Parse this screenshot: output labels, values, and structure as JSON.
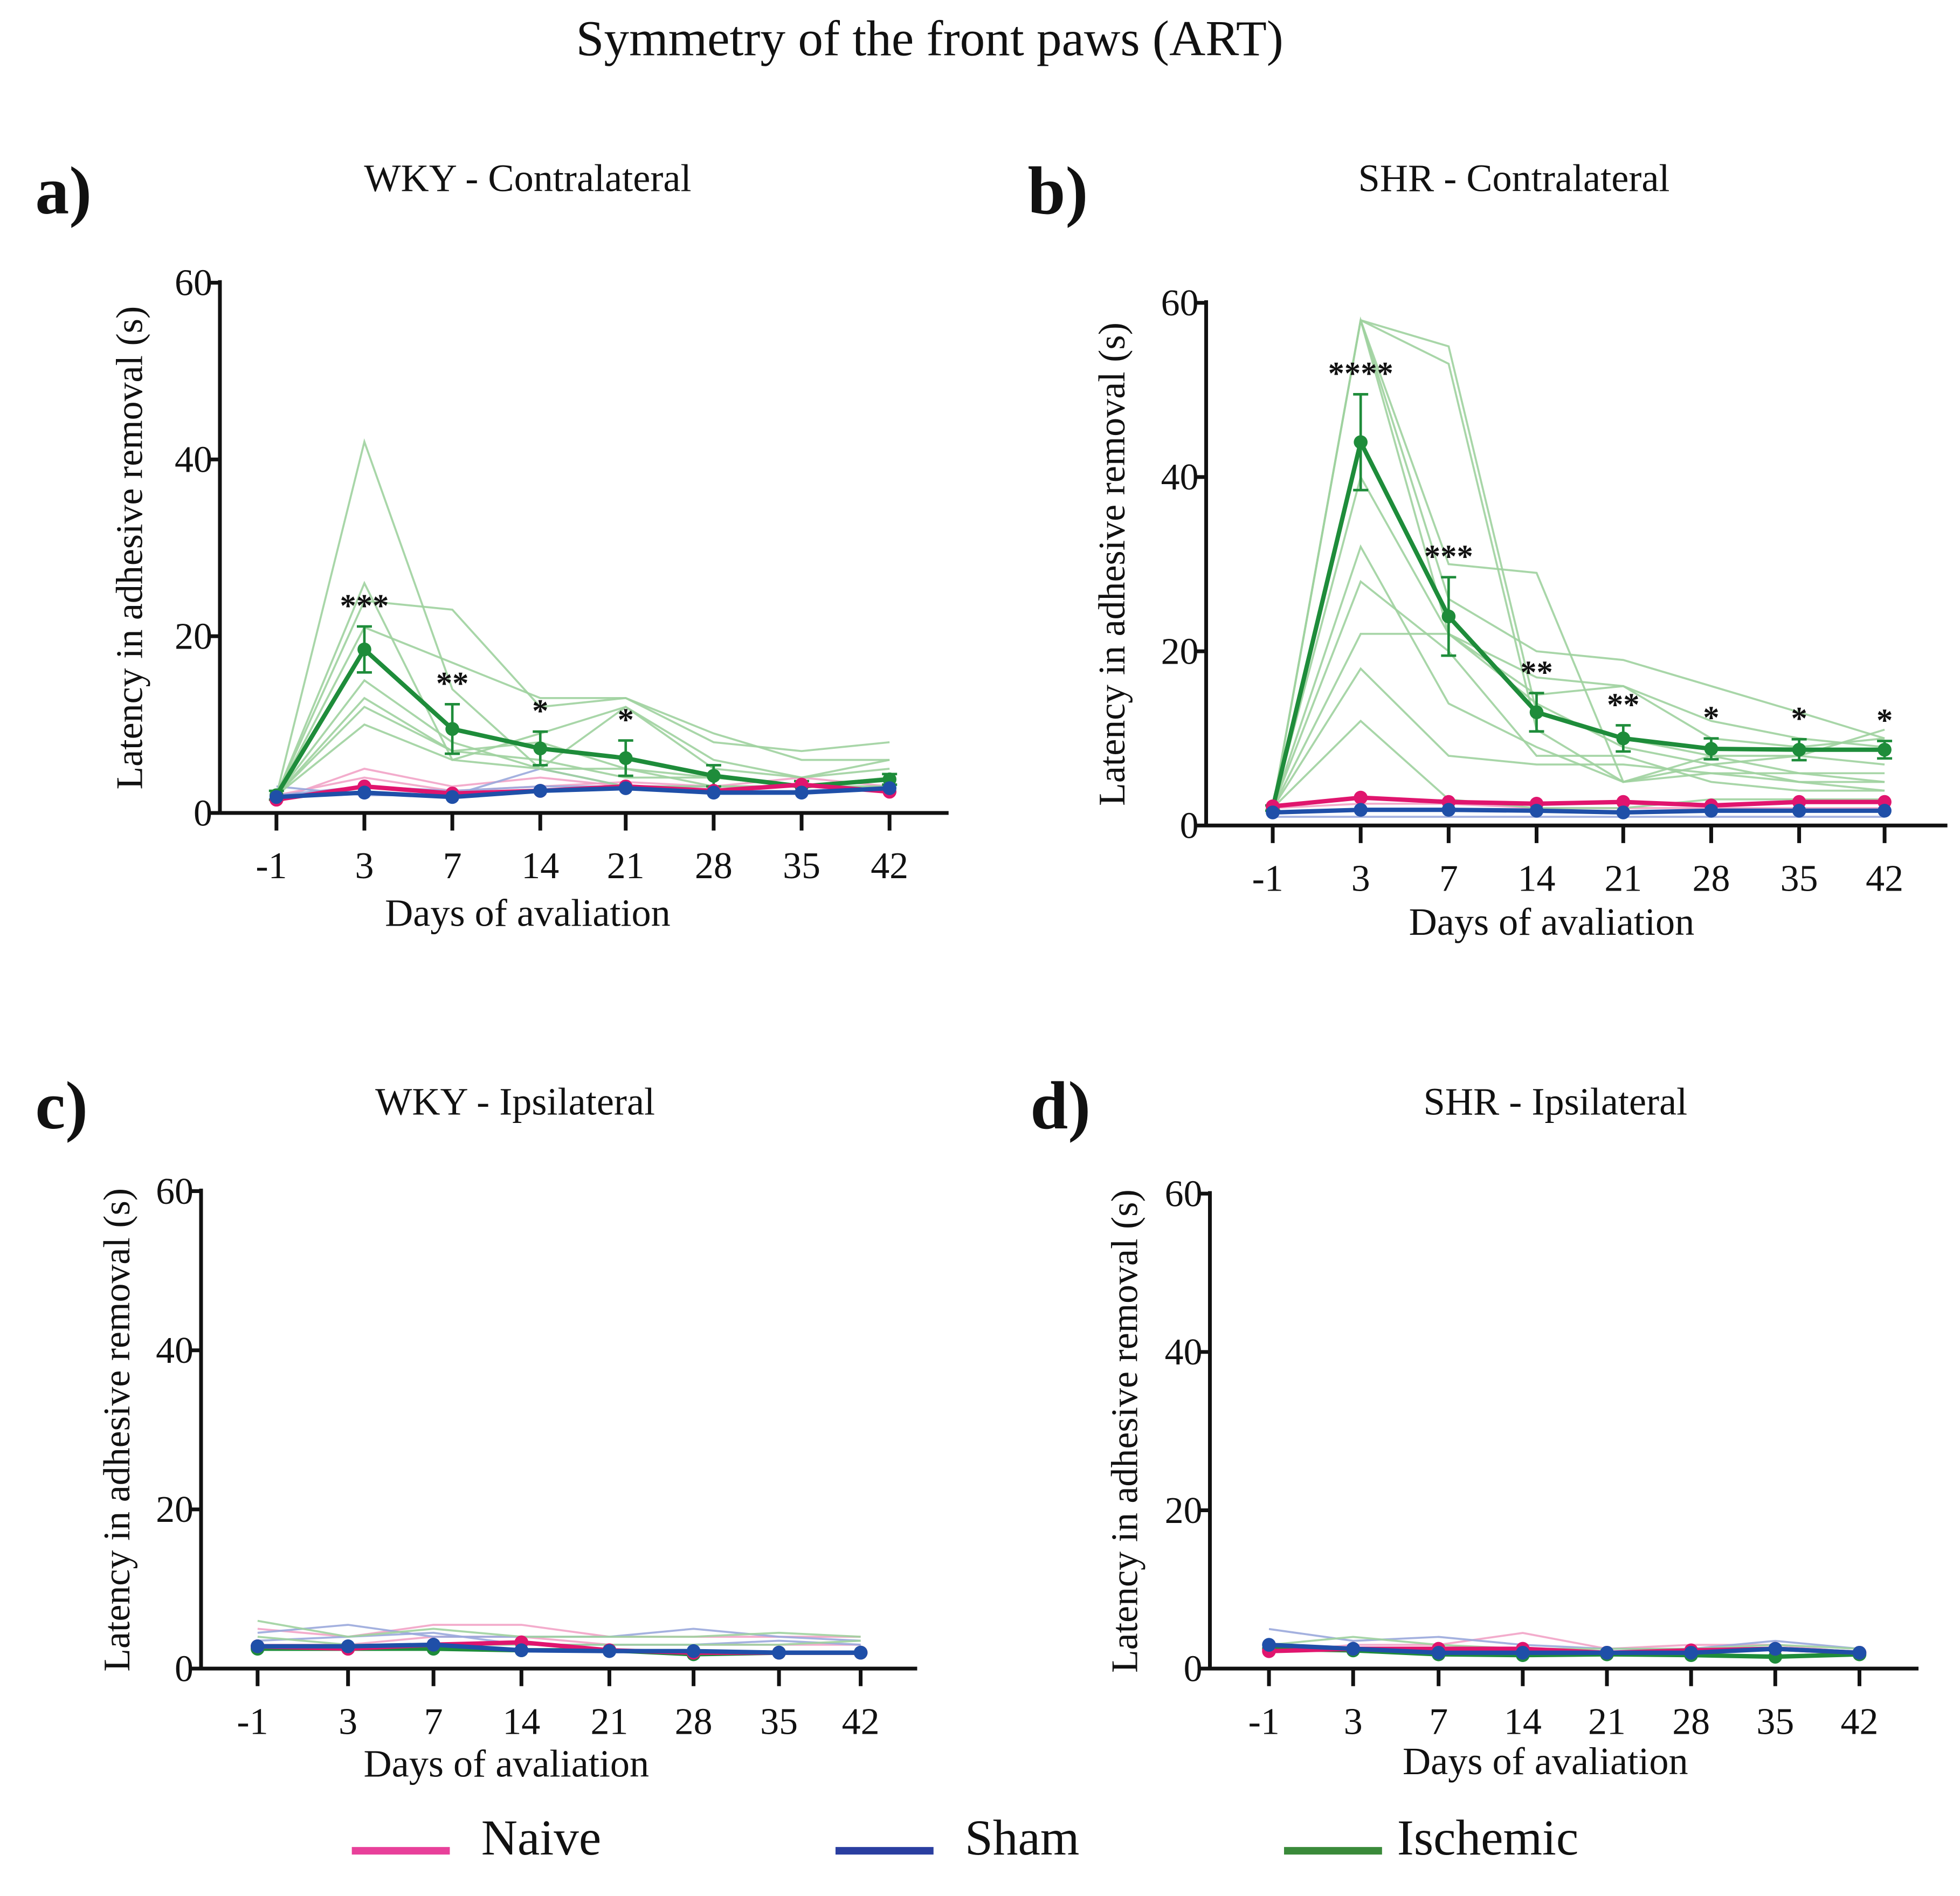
{
  "title": "Symmetry of the front paws (ART)",
  "colors": {
    "naive": "#e0156e",
    "naive_individual": "#f2a3c6",
    "sham": "#1f4fa8",
    "sham_individual": "#9aa8dc",
    "ischemic": "#1e8c3a",
    "ischemic_individual": "#9fd19f",
    "legend_naive": "#e8409a",
    "legend_sham": "#2a3ea0",
    "legend_ischemic": "#3a8a3a"
  },
  "legend": [
    {
      "key": "naive",
      "label": "Naive"
    },
    {
      "key": "sham",
      "label": "Sham"
    },
    {
      "key": "ischemic",
      "label": "Ischemic"
    }
  ],
  "chart_data": [
    {
      "type": "line",
      "panel_label": "a)",
      "title": "WKY - Contralateral",
      "xlabel": "Days of avaliation",
      "ylabel": "Latency in adhesive removal (s)",
      "categories": [
        "-1",
        "3",
        "7",
        "14",
        "21",
        "28",
        "35",
        "42"
      ],
      "yticks": [
        0,
        20,
        40,
        60
      ],
      "ylim": [
        0,
        60
      ],
      "grid": false,
      "series": [
        {
          "name": "Naive",
          "key": "naive",
          "values": [
            1.5,
            3,
            2.2,
            2.5,
            3,
            2.5,
            3.2,
            2.4
          ]
        },
        {
          "name": "Sham",
          "key": "sham",
          "values": [
            1.8,
            2.3,
            1.8,
            2.5,
            2.8,
            2.3,
            2.3,
            2.8
          ]
        },
        {
          "name": "Ischemic",
          "key": "ischemic",
          "values": [
            2,
            18.5,
            9.5,
            7.3,
            6.2,
            4.2,
            3,
            3.8
          ],
          "error": [
            0.5,
            2.6,
            2.8,
            1.9,
            2,
            1.2,
            0.6,
            0.6
          ]
        }
      ],
      "individuals": {
        "naive": [
          [
            1.5,
            5,
            3,
            4,
            3,
            3,
            4,
            3
          ],
          [
            2,
            4,
            2.5,
            3,
            3.5,
            3,
            3,
            2.5
          ]
        ],
        "sham": [
          [
            3,
            2,
            2,
            5,
            3,
            3,
            3,
            3
          ],
          [
            2,
            3,
            2.5,
            3,
            3,
            2.5,
            2.5,
            3
          ]
        ],
        "ischemic": [
          [
            2,
            42,
            14,
            5,
            3,
            3,
            3,
            3
          ],
          [
            2,
            26,
            6,
            9,
            12,
            6,
            4,
            5
          ],
          [
            2,
            24,
            23,
            12,
            13,
            8,
            7,
            8
          ],
          [
            2,
            21,
            17,
            13,
            13,
            9,
            6,
            6
          ],
          [
            2,
            15,
            8,
            5,
            12,
            5,
            4,
            6
          ],
          [
            2,
            13,
            7,
            6,
            4,
            4,
            3,
            3
          ],
          [
            2,
            10,
            6,
            5,
            5,
            3,
            3,
            4
          ],
          [
            2,
            12,
            7,
            8,
            5,
            4,
            3,
            4
          ]
        ]
      },
      "significance": [
        "",
        "***",
        "**",
        "*",
        "*",
        "",
        "",
        ""
      ]
    },
    {
      "type": "line",
      "panel_label": "b)",
      "title": "SHR - Contralateral",
      "xlabel": "Days of avaliation",
      "ylabel": "Latency in adhesive removal (s)",
      "categories": [
        "-1",
        "3",
        "7",
        "14",
        "21",
        "28",
        "35",
        "42"
      ],
      "yticks": [
        0,
        20,
        40,
        60
      ],
      "ylim": [
        0,
        60
      ],
      "grid": false,
      "series": [
        {
          "name": "Naive",
          "key": "naive",
          "values": [
            2.2,
            3.2,
            2.7,
            2.5,
            2.7,
            2.3,
            2.7,
            2.7
          ]
        },
        {
          "name": "Sham",
          "key": "sham",
          "values": [
            1.5,
            1.8,
            1.8,
            1.7,
            1.5,
            1.7,
            1.7,
            1.7
          ]
        },
        {
          "name": "Ischemic",
          "key": "ischemic",
          "values": [
            2,
            44,
            24,
            13,
            10,
            8.8,
            8.7,
            8.7
          ],
          "error": [
            0.3,
            5.5,
            4.5,
            2.2,
            1.5,
            1.2,
            1.2,
            1
          ]
        }
      ],
      "individuals": {
        "naive": [
          [
            2,
            2.5,
            2.5,
            2,
            2,
            2,
            2,
            2
          ]
        ],
        "sham": [
          [
            1,
            1,
            1,
            1,
            1,
            1,
            1,
            1
          ]
        ],
        "ischemic": [
          [
            2,
            58,
            55,
            13,
            10,
            8,
            8,
            7
          ],
          [
            2,
            58,
            53,
            11,
            5,
            8,
            6,
            6
          ],
          [
            2,
            58,
            30,
            29,
            5,
            7,
            5,
            5
          ],
          [
            2,
            58,
            26,
            20,
            19,
            16,
            13,
            10
          ],
          [
            2,
            58,
            22,
            17,
            16,
            12,
            10,
            9
          ],
          [
            2,
            40,
            22,
            15,
            16,
            10,
            9,
            10
          ],
          [
            2,
            32,
            14,
            9,
            5,
            6,
            5,
            4
          ],
          [
            2,
            28,
            20,
            8,
            8,
            5,
            4,
            4
          ],
          [
            2,
            22,
            22,
            14,
            9,
            7,
            8,
            11
          ],
          [
            2,
            18,
            8,
            7,
            7,
            6,
            6,
            5
          ],
          [
            2,
            12,
            3,
            2,
            2,
            3,
            3,
            3
          ]
        ]
      },
      "significance": [
        "",
        "****",
        "***",
        "**",
        "**",
        "*",
        "*",
        "*"
      ]
    },
    {
      "type": "line",
      "panel_label": "c)",
      "title": "WKY - Ipsilateral",
      "xlabel": "Days of avaliation",
      "ylabel": "Latency in adhesive removal (s)",
      "categories": [
        "-1",
        "3",
        "7",
        "14",
        "21",
        "28",
        "35",
        "42"
      ],
      "yticks": [
        0,
        20,
        40,
        60
      ],
      "ylim": [
        0,
        60
      ],
      "grid": false,
      "series": [
        {
          "name": "Naive",
          "key": "naive",
          "values": [
            2.8,
            2.5,
            3,
            3.3,
            2.3,
            2,
            2,
            2
          ]
        },
        {
          "name": "Sham",
          "key": "sham",
          "values": [
            2.8,
            2.8,
            3,
            2.3,
            2.2,
            2.2,
            2,
            2
          ]
        },
        {
          "name": "Ischemic",
          "key": "ischemic",
          "values": [
            2.5,
            2.5,
            2.5,
            2.3,
            2.3,
            1.8,
            2,
            2
          ]
        }
      ],
      "individuals": {
        "naive": [
          [
            5,
            4,
            5.5,
            5.5,
            4,
            4,
            4,
            4
          ],
          [
            3,
            3,
            4,
            4,
            3,
            3,
            3,
            3
          ]
        ],
        "sham": [
          [
            4.5,
            5.5,
            4,
            4,
            4,
            5,
            4,
            3.5
          ],
          [
            3.5,
            4,
            4.5,
            3,
            3,
            3,
            3.5,
            3
          ]
        ],
        "ischemic": [
          [
            6,
            4,
            5,
            4,
            4,
            4,
            4.5,
            4
          ],
          [
            4,
            3,
            3,
            3,
            3,
            3,
            3,
            3.5
          ]
        ]
      },
      "significance": [
        "",
        "",
        "",
        "",
        "",
        "",
        "",
        ""
      ]
    },
    {
      "type": "line",
      "panel_label": "d)",
      "title": "SHR - Ipsilateral",
      "xlabel": "Days of avaliation",
      "ylabel": "Latency in adhesive removal (s)",
      "categories": [
        "-1",
        "3",
        "7",
        "14",
        "21",
        "28",
        "35",
        "42"
      ],
      "yticks": [
        0,
        20,
        40,
        60
      ],
      "ylim": [
        0,
        60
      ],
      "grid": false,
      "series": [
        {
          "name": "Naive",
          "key": "naive",
          "values": [
            2.2,
            2.5,
            2.5,
            2.5,
            2,
            2.3,
            2.5,
            2
          ]
        },
        {
          "name": "Sham",
          "key": "sham",
          "values": [
            3,
            2.5,
            2,
            2,
            2,
            2,
            2.5,
            2
          ]
        },
        {
          "name": "Ischemic",
          "key": "ischemic",
          "values": [
            2.5,
            2.3,
            1.8,
            1.7,
            1.8,
            1.7,
            1.5,
            1.8
          ]
        }
      ],
      "individuals": {
        "naive": [
          [
            2,
            3,
            3,
            4.5,
            2.5,
            3,
            3,
            2
          ]
        ],
        "sham": [
          [
            5,
            3.5,
            4,
            3,
            2.5,
            2.5,
            3.5,
            2.5
          ]
        ],
        "ischemic": [
          [
            3,
            4,
            3,
            2.5,
            2.5,
            2.5,
            3,
            2.5
          ]
        ]
      },
      "significance": [
        "",
        "",
        "",
        "",
        "",
        "",
        "",
        ""
      ]
    }
  ]
}
